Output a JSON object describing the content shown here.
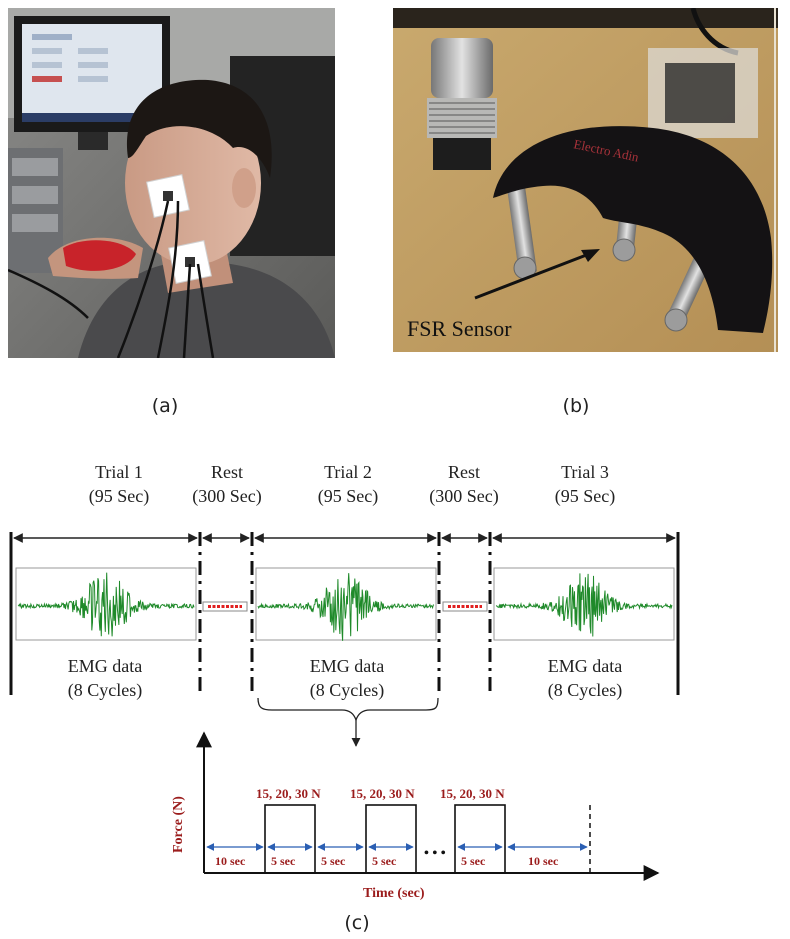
{
  "panels": {
    "a": {
      "caption": "(a)"
    },
    "b": {
      "caption": "(b)",
      "sensor_label": "FSR Sensor",
      "strip_text": "Electro Adin"
    },
    "c": {
      "caption": "(c)"
    }
  },
  "protocol": {
    "segments": [
      {
        "title": "Trial 1",
        "duration": "(95 Sec)",
        "body": "EMG data",
        "sub": "(8 Cycles)"
      },
      {
        "title": "Rest",
        "duration": "(300 Sec)"
      },
      {
        "title": "Trial 2",
        "duration": "(95 Sec)",
        "body": "EMG data",
        "sub": "(8 Cycles)"
      },
      {
        "title": "Rest",
        "duration": "(300 Sec)"
      },
      {
        "title": "Trial 3",
        "duration": "(95 Sec)",
        "body": "EMG data",
        "sub": "(8 Cycles)"
      }
    ]
  },
  "force_plot": {
    "ylabel": "Force (N)",
    "xlabel": "Time (sec)",
    "force_levels": "15, 20, 30 N",
    "intervals": [
      "10 sec",
      "5 sec",
      "5 sec",
      "5 sec",
      "5 sec",
      "10 sec"
    ],
    "ellipsis": "• • •"
  },
  "colors": {
    "emg": "#1f8a2a",
    "rest": "#e02020",
    "label_red": "#9b1c1c"
  }
}
